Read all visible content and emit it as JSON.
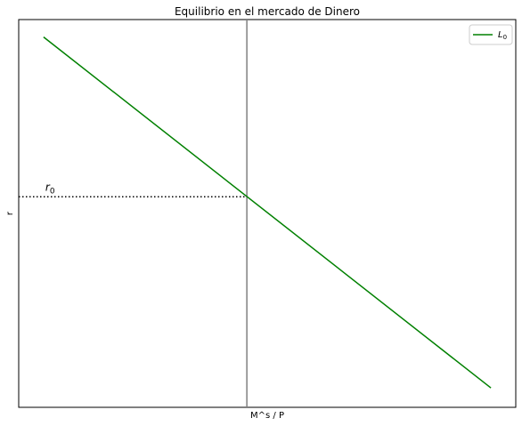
{
  "chart_data": {
    "type": "line",
    "title": "Equilibrio en el mercado de Dinero",
    "xlabel": "M^s / P",
    "ylabel": "r",
    "xlim": [
      0,
      100
    ],
    "ylim": [
      0,
      100
    ],
    "ticks": "none",
    "grid": false,
    "legend": {
      "placement": "top-right",
      "entries": [
        {
          "label": "L",
          "subscript": "0"
        }
      ]
    },
    "series": [
      {
        "name": "L0",
        "color": "#008000",
        "x": [
          5,
          95
        ],
        "y": [
          95.5,
          5
        ]
      }
    ],
    "money_supply_line": {
      "x": 45.9,
      "color": "#808080"
    },
    "equilibrium": {
      "x": 45.9,
      "y": 54.3,
      "style": "dotted"
    },
    "annotations": [
      {
        "text": "r",
        "subscript": "0",
        "x": 5,
        "y": 54.3
      }
    ]
  }
}
